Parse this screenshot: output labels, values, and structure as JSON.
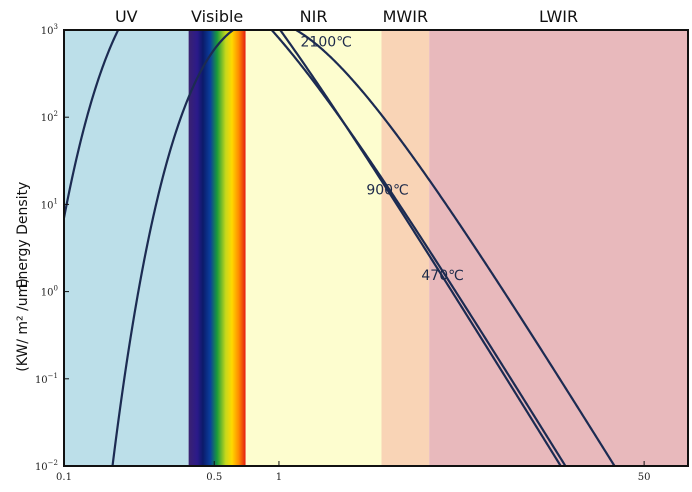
{
  "chart_data": {
    "type": "line",
    "title": "",
    "xlabel": "",
    "ylabel": "Energy Density",
    "ylabel_units": "(KW/ m² /um)",
    "x_scale": "log",
    "y_scale": "log",
    "xlim": [
      0.1,
      80
    ],
    "ylim": [
      0.01,
      1000
    ],
    "x_tick_labels": [
      {
        "value": 0.1,
        "label": "0.1"
      },
      {
        "value": 0.5,
        "label": "0.5"
      },
      {
        "value": 1,
        "label": "1"
      },
      {
        "value": 50,
        "label": "50"
      }
    ],
    "y_ticks": [
      {
        "value": 1000,
        "base": "10",
        "exp": "3"
      },
      {
        "value": 100,
        "base": "10",
        "exp": "2"
      },
      {
        "value": 10,
        "base": "10",
        "exp": "1"
      },
      {
        "value": 1,
        "base": "10",
        "exp": "0"
      },
      {
        "value": 0.1,
        "base": "10",
        "exp": "−1"
      },
      {
        "value": 0.01,
        "base": "10",
        "exp": "−2"
      }
    ],
    "bands": [
      {
        "name": "UV",
        "from": 0.1,
        "to": 0.38,
        "color": "#bcdfe9"
      },
      {
        "name": "Visible",
        "from": 0.38,
        "to": 0.7,
        "color": "spectrum"
      },
      {
        "name": "NIR",
        "from": 0.7,
        "to": 3,
        "color": "#fdfdcf"
      },
      {
        "name": "MWIR",
        "from": 3,
        "to": 5,
        "color": "#f9d4b6"
      },
      {
        "name": "LWIR",
        "from": 5,
        "to": 80,
        "color": "#e8b9bc"
      }
    ],
    "series": [
      {
        "name": "2100℃",
        "temperature_c": 2100,
        "peak": [
          1.2,
          1000
        ]
      },
      {
        "name": "900℃",
        "temperature_c": 900,
        "peak": [
          2.8,
          26
        ]
      },
      {
        "name": "470℃",
        "temperature_c": 470,
        "peak": [
          5.0,
          2.6
        ]
      }
    ],
    "curve_labels": [
      {
        "text": "2100℃",
        "x": 1.26,
        "y": 650
      },
      {
        "text": "900℃",
        "x": 2.55,
        "y": 13
      },
      {
        "text": "470℃",
        "x": 4.6,
        "y": 1.35
      }
    ],
    "grid": false,
    "legend": "none",
    "colors": {
      "curve": "#1c2b52",
      "frame": "#111111"
    }
  }
}
